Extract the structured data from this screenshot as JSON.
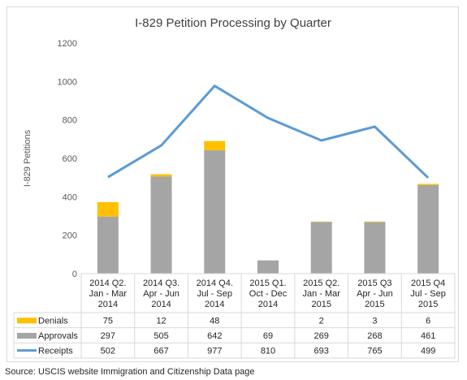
{
  "chart_data": {
    "type": "bar",
    "title": "I-829 Petition Processing by Quarter",
    "ylabel": "I-829 Petitions",
    "xlabel": "",
    "ylim": [
      0,
      1200
    ],
    "yticks": [
      0,
      200,
      400,
      600,
      800,
      1000,
      1200
    ],
    "grid": false,
    "legend": "table-left",
    "categories": [
      [
        "2014 Q2.",
        "Jan - Mar",
        "2014"
      ],
      [
        "2014 Q3.",
        "Apr - Jun",
        "2014"
      ],
      [
        "2014 Q4.",
        "Jul - Sep",
        "2014"
      ],
      [
        "2015 Q1.",
        "Oct - Dec",
        "2014"
      ],
      [
        "2015 Q2.",
        "Jan - Mar",
        "2015"
      ],
      [
        "2015 Q3",
        "Apr - Jun",
        "2015"
      ],
      [
        "2015 Q4",
        "Jul - Sep",
        "2015"
      ]
    ],
    "series": [
      {
        "name": "Denials",
        "kind": "stacked-bar",
        "color": "#ffc000",
        "values": [
          75,
          12,
          48,
          null,
          2,
          3,
          6
        ],
        "labels": [
          "75",
          "12",
          "48",
          "",
          "2",
          "3",
          "6"
        ]
      },
      {
        "name": "Approvals",
        "kind": "stacked-bar",
        "color": "#a5a5a5",
        "values": [
          297,
          505,
          642,
          69,
          269,
          268,
          461
        ],
        "labels": [
          "297",
          "505",
          "642",
          "69",
          "269",
          "268",
          "461"
        ]
      },
      {
        "name": "Receipts",
        "kind": "line",
        "color": "#5b9bd5",
        "values": [
          502,
          667,
          977,
          810,
          693,
          765,
          499
        ],
        "labels": [
          "502",
          "667",
          "977",
          "810",
          "693",
          "765",
          "499"
        ]
      }
    ]
  },
  "source": "Source: USCIS website Immigration and Citizenship Data page"
}
